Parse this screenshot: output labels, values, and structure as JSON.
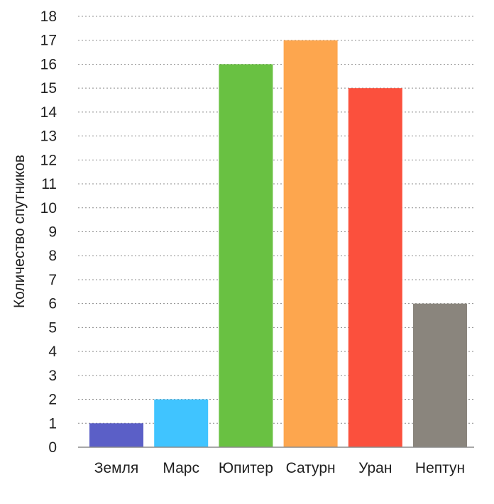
{
  "chart_data": {
    "type": "bar",
    "title": "",
    "xlabel": "",
    "ylabel": "Количество спутников",
    "categories": [
      "Земля",
      "Марс",
      "Юпитер",
      "Сатурн",
      "Уран",
      "Нептун"
    ],
    "values": [
      1,
      2,
      16,
      17,
      15,
      6
    ],
    "colors": [
      "#5b5fc7",
      "#40c4ff",
      "#69c142",
      "#fda64e",
      "#fb503d",
      "#8a857d"
    ],
    "ylim": [
      0,
      18
    ],
    "yticks": [
      0,
      1,
      2,
      3,
      4,
      5,
      6,
      7,
      8,
      9,
      10,
      11,
      12,
      13,
      14,
      15,
      16,
      17,
      18
    ],
    "grid": true,
    "legend": "none"
  }
}
